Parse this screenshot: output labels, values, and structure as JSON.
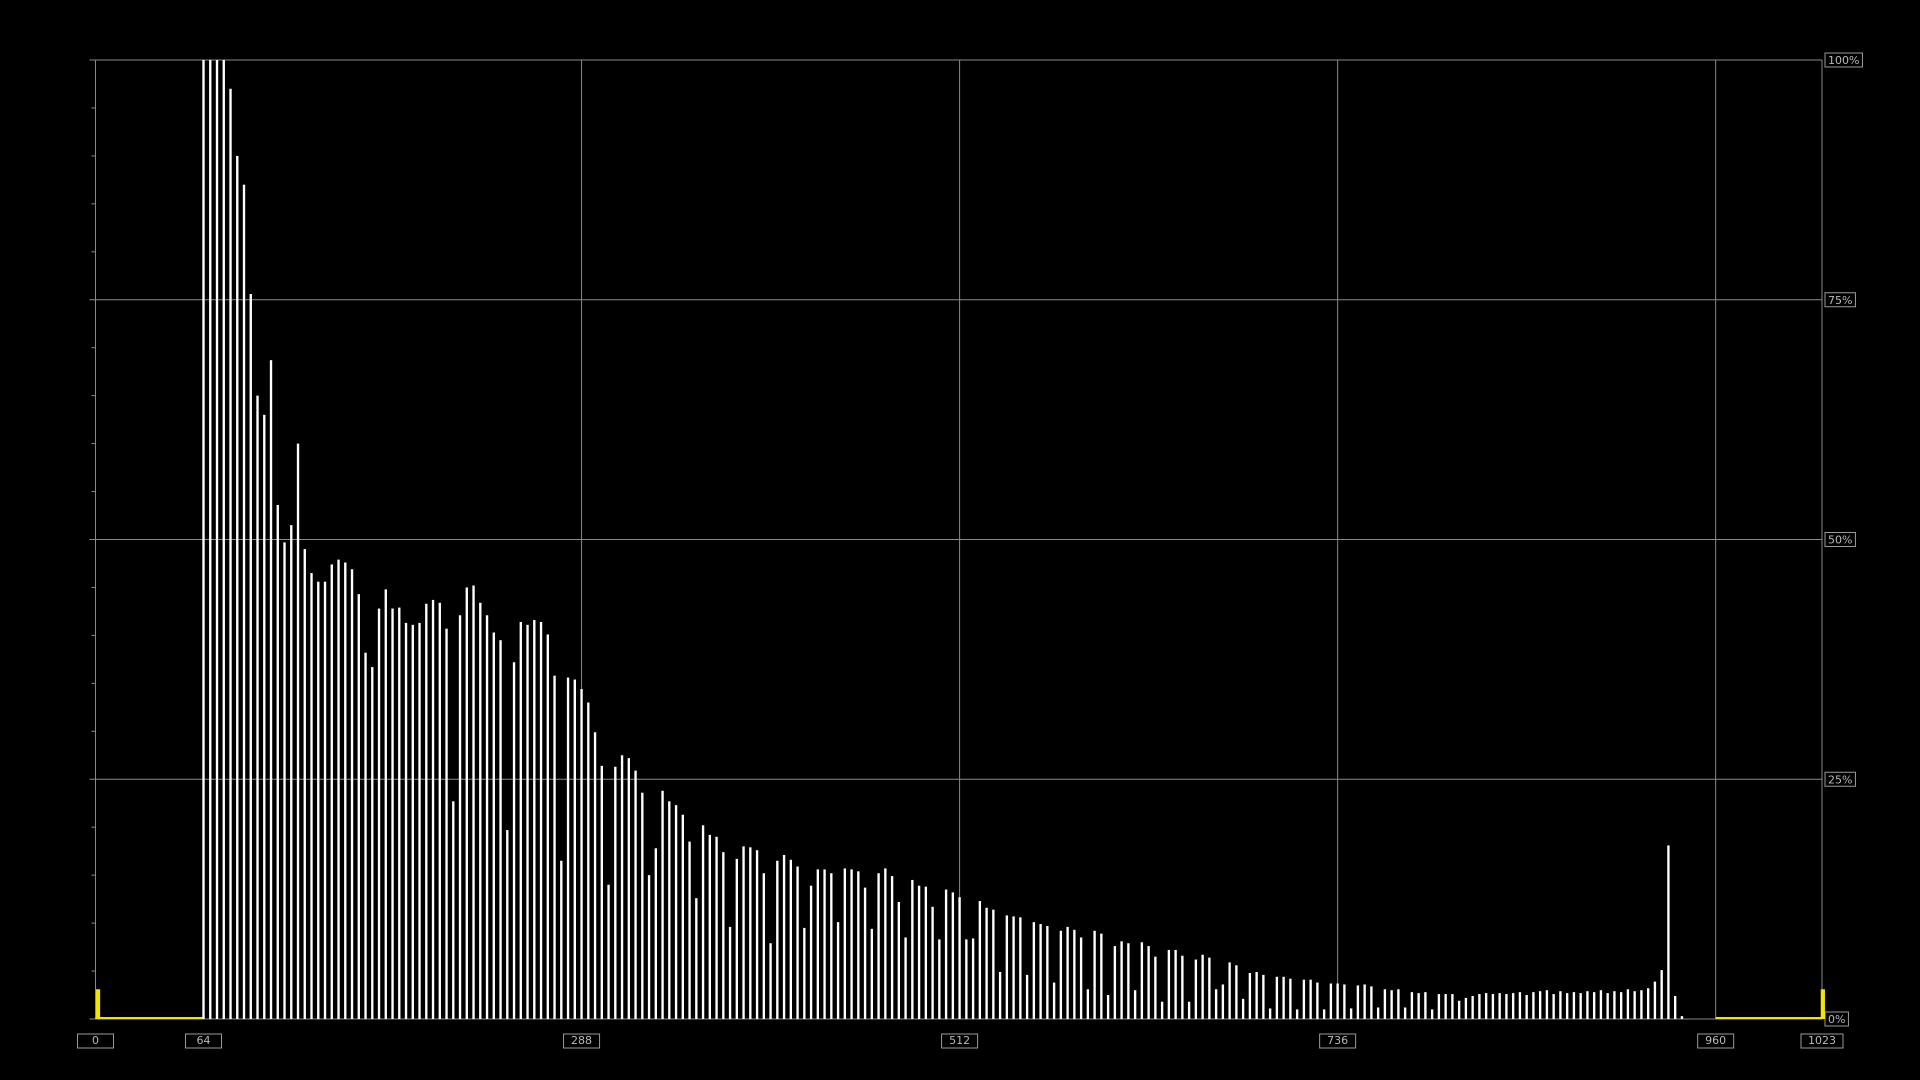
{
  "chart_data": {
    "type": "bar",
    "series": [
      {
        "color": "#ffffff",
        "x": [
          64,
          68,
          72,
          76,
          80,
          84,
          88,
          92,
          96,
          100,
          104,
          108,
          112,
          116,
          120,
          124,
          128,
          132,
          136,
          140,
          144,
          148,
          152,
          156,
          160,
          164,
          168,
          172,
          176,
          180,
          184,
          188,
          192,
          196,
          200,
          204,
          208,
          212,
          216,
          220,
          224,
          228,
          232,
          236,
          240,
          244,
          248,
          252,
          256,
          260,
          264,
          268,
          272,
          276,
          280,
          284,
          288,
          292,
          296,
          300,
          304,
          308,
          312,
          316,
          320,
          324,
          328,
          332,
          336,
          340,
          344,
          348,
          352,
          356,
          360,
          364,
          368,
          372,
          376,
          380,
          384,
          388,
          392,
          396,
          400,
          404,
          408,
          412,
          416,
          420,
          424,
          428,
          432,
          436,
          440,
          444,
          448,
          452,
          456,
          460,
          464,
          468,
          472,
          476,
          480,
          484,
          488,
          492,
          496,
          500,
          504,
          508,
          512,
          516,
          520,
          524,
          528,
          532,
          536,
          540,
          544,
          548,
          552,
          556,
          560,
          564,
          568,
          572,
          576,
          580,
          584,
          588,
          592,
          596,
          600,
          604,
          608,
          612,
          616,
          620,
          624,
          628,
          632,
          636,
          640,
          644,
          648,
          652,
          656,
          660,
          664,
          668,
          672,
          676,
          680,
          684,
          688,
          692,
          696,
          700,
          704,
          708,
          712,
          716,
          720,
          724,
          728,
          732,
          736,
          740,
          744,
          748,
          752,
          756,
          760,
          764,
          768,
          772,
          776,
          780,
          784,
          788,
          792,
          796,
          800,
          804,
          808,
          812,
          816,
          820,
          824,
          828,
          832,
          836,
          840,
          844,
          848,
          852,
          856,
          860,
          864,
          868,
          872,
          876,
          880,
          884,
          888,
          892,
          896,
          900,
          904,
          908,
          912,
          916,
          920,
          924,
          928,
          932,
          936,
          940
        ],
        "values": [
          100,
          100,
          100,
          100,
          97,
          90,
          87,
          75.6,
          65,
          63,
          68.7,
          53.6,
          49.7,
          51.5,
          60,
          49,
          46.5,
          45.6,
          45.6,
          47.4,
          47.9,
          47.6,
          46.9,
          44.3,
          38.2,
          36.7,
          42.8,
          44.8,
          42.8,
          42.9,
          41.3,
          41.1,
          41.3,
          43.3,
          43.7,
          43.4,
          40.7,
          22.7,
          42.1,
          45.0,
          45.2,
          43.4,
          42.1,
          40.3,
          39.5,
          19.7,
          37.2,
          41.4,
          41.1,
          41.6,
          41.4,
          40.1,
          35.8,
          16.5,
          35.6,
          35.4,
          34.4,
          33.0,
          29.9,
          26.4,
          14.0,
          26.3,
          27.5,
          27.2,
          25.9,
          23.6,
          15.0,
          17.8,
          23.8,
          22.7,
          22.3,
          21.3,
          18.5,
          12.6,
          20.2,
          19.2,
          19.0,
          17.4,
          9.6,
          16.7,
          18.0,
          17.9,
          17.6,
          15.2,
          7.9,
          16.5,
          17.1,
          16.6,
          15.9,
          9.5,
          13.9,
          15.6,
          15.6,
          15.2,
          10.1,
          15.7,
          15.6,
          15.4,
          13.7,
          9.4,
          15.2,
          15.7,
          14.9,
          12.2,
          8.5,
          14.5,
          13.9,
          13.8,
          11.7,
          8.3,
          13.5,
          13.2,
          12.7,
          8.3,
          8.4,
          12.3,
          11.6,
          11.4,
          4.9,
          10.8,
          10.7,
          10.6,
          4.6,
          10.1,
          9.9,
          9.7,
          3.8,
          9.2,
          9.6,
          9.3,
          8.5,
          3.1,
          9.2,
          8.9,
          2.5,
          7.6,
          8.1,
          7.9,
          3.0,
          8.0,
          7.6,
          6.5,
          1.8,
          7.2,
          7.2,
          6.6,
          1.8,
          6.2,
          6.7,
          6.4,
          3.1,
          3.6,
          5.9,
          5.6,
          2.1,
          4.8,
          4.9,
          4.6,
          1.1,
          4.4,
          4.4,
          4.2,
          1.0,
          4.1,
          4.1,
          3.8,
          1.0,
          3.7,
          3.7,
          3.6,
          1.1,
          3.5,
          3.6,
          3.4,
          1.2,
          3.1,
          3.0,
          3.1,
          1.2,
          2.8,
          2.7,
          2.8,
          1.0,
          2.6,
          2.6,
          2.6,
          1.9,
          2.2,
          2.4,
          2.6,
          2.7,
          2.6,
          2.7,
          2.6,
          2.7,
          2.8,
          2.5,
          2.8,
          2.9,
          3.0,
          2.6,
          2.9,
          2.7,
          2.8,
          2.7,
          2.9,
          2.8,
          3.0,
          2.7,
          2.9,
          2.8,
          3.1,
          2.9,
          3.0,
          3.2,
          3.9,
          5.1,
          18.1,
          2.4,
          0.3
        ]
      },
      {
        "color": "#f2e600",
        "x": [
          0,
          1022
        ],
        "values": [
          3.1,
          3.1
        ]
      }
    ],
    "xlim": [
      0,
      1023
    ],
    "ylim": [
      0,
      100
    ],
    "xticks": [
      0,
      64,
      288,
      512,
      736,
      960,
      1023
    ],
    "yticks": [
      {
        "value": 0,
        "label": "0%"
      },
      {
        "value": 25,
        "label": "25%"
      },
      {
        "value": 50,
        "label": "50%"
      },
      {
        "value": 75,
        "label": "75%"
      },
      {
        "value": 100,
        "label": "100%"
      }
    ],
    "minor_yticks": [
      5,
      10,
      15,
      20,
      30,
      35,
      40,
      45,
      55,
      60,
      65,
      70,
      80,
      85,
      90,
      95
    ],
    "grid": true
  }
}
